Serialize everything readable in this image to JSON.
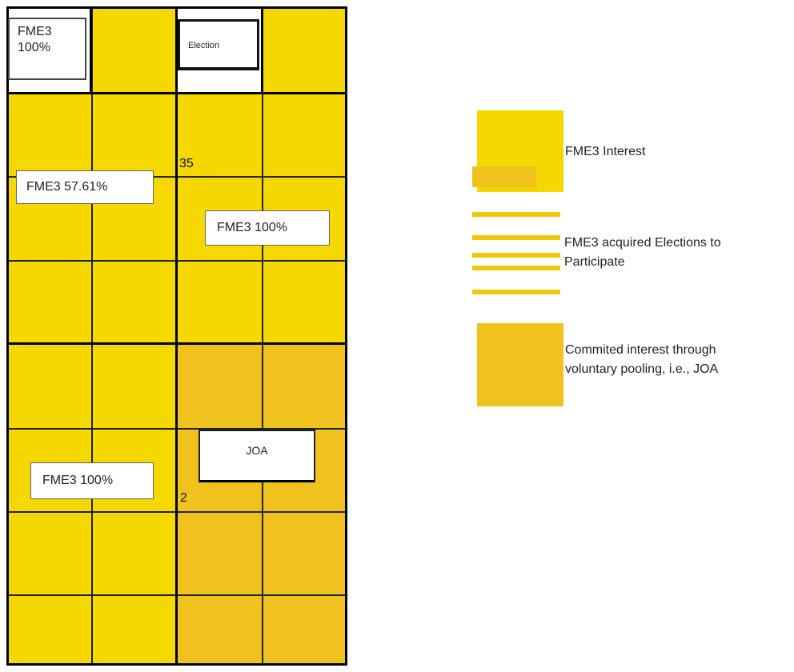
{
  "colors": {
    "fme3_interest": "#F5D800",
    "joa_interest": "#EFC21E",
    "stripe": "#F0C80A",
    "grid_line": "#000000",
    "background": "#FFFFFF"
  },
  "tracts": {
    "top_left_label": {
      "line1": "FME3",
      "line2": "100%"
    },
    "election_label": "Election",
    "section_35_left_label": "FME3 57.61%",
    "section_35_right_label": "FME3 100%",
    "section_2_left_label": "FME3 100%",
    "joa_label": "JOA"
  },
  "section_numbers": {
    "upper": "35",
    "lower": "2"
  },
  "legend": {
    "items": [
      {
        "label": "FME3 Interest",
        "color_key": "fme3_interest"
      },
      {
        "label_line1": "FME3 acquired Elections to",
        "label_line2": "Participate",
        "color_key": "stripe"
      },
      {
        "label_line1": "Commited interest through",
        "label_line2": "voluntary pooling, i.e., JOA",
        "color_key": "joa_interest"
      }
    ]
  }
}
